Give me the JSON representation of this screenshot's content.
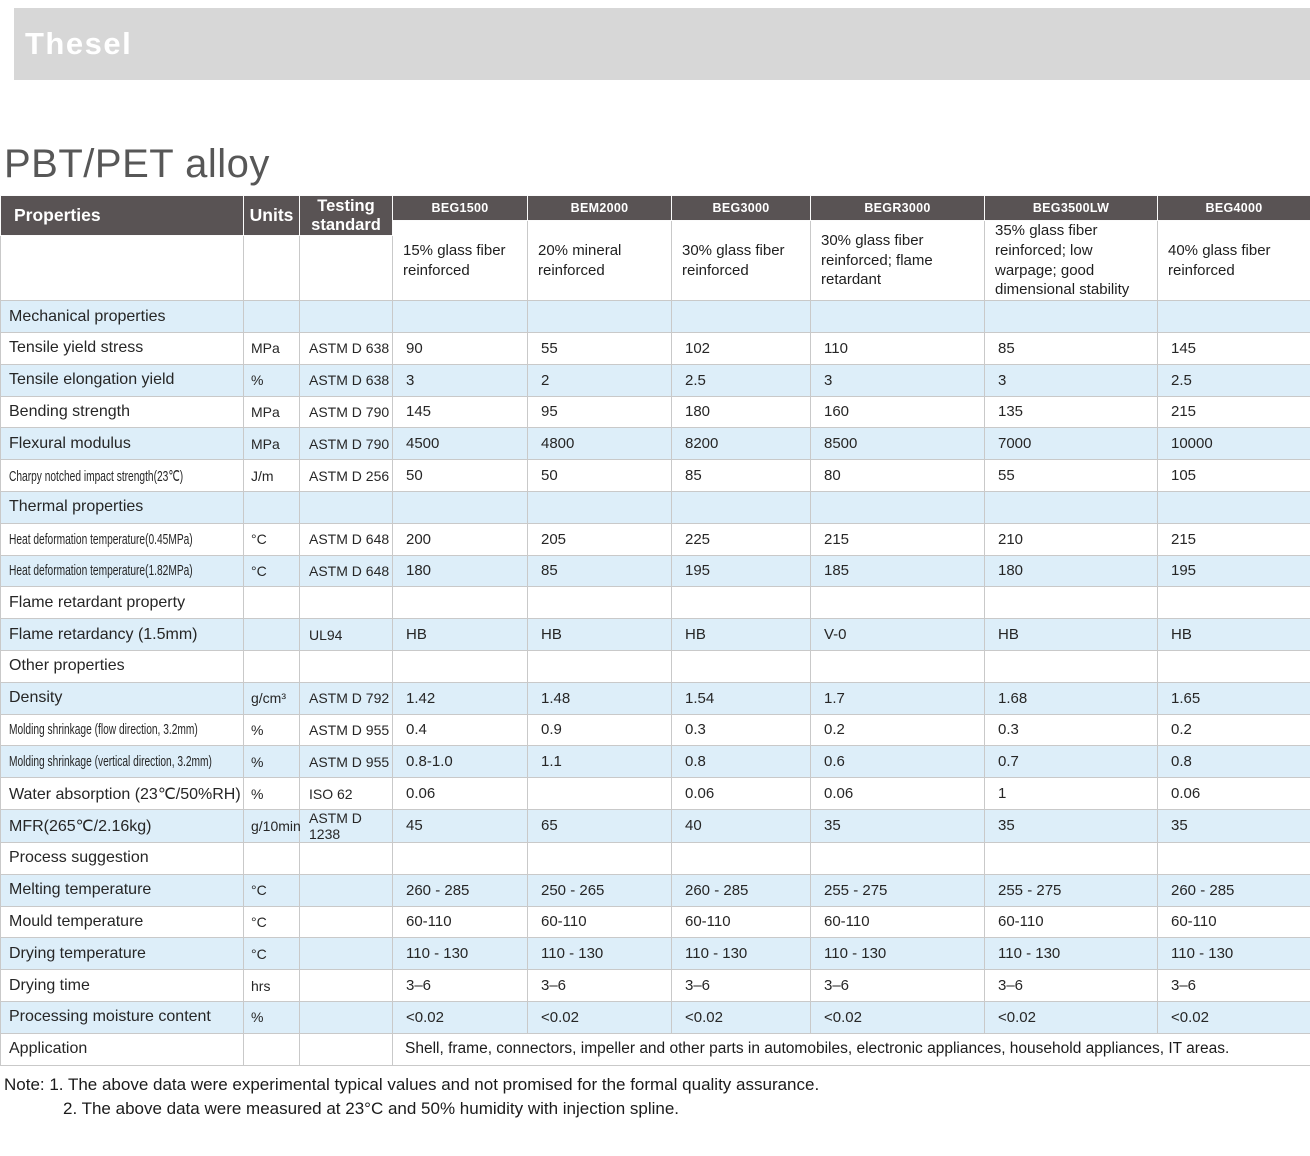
{
  "brand": {
    "logo_text": "Thesel"
  },
  "page": {
    "title": "PBT/PET alloy"
  },
  "colors": {
    "banner_bg": "#d7d7d7",
    "header_bg": "#595354",
    "alt_row_bg": "#ddeef9"
  },
  "table": {
    "header": {
      "properties": "Properties",
      "units": "Units",
      "standard": "Testing standard",
      "products": [
        {
          "code": "BEG1500",
          "desc": "15% glass fiber reinforced"
        },
        {
          "code": "BEM2000",
          "desc": "20% mineral reinforced"
        },
        {
          "code": "BEG3000",
          "desc": "30% glass fiber reinforced"
        },
        {
          "code": "BEGR3000",
          "desc": "30% glass fiber reinforced; flame retardant"
        },
        {
          "code": "BEG3500LW",
          "desc": "35% glass fiber reinforced; low warpage; good dimensional stability"
        },
        {
          "code": "BEG4000",
          "desc": "40% glass fiber reinforced"
        }
      ]
    },
    "rows": [
      {
        "type": "section",
        "label": "Mechanical properties"
      },
      {
        "type": "data",
        "property": "Tensile yield stress",
        "unit": "MPa",
        "standard": "ASTM D 638",
        "values": [
          "90",
          "55",
          "102",
          "110",
          "85",
          "145"
        ]
      },
      {
        "type": "data",
        "property": "Tensile elongation yield",
        "unit": "%",
        "standard": "ASTM D 638",
        "values": [
          "3",
          "2",
          "2.5",
          "3",
          "3",
          "2.5"
        ]
      },
      {
        "type": "data",
        "property": "Bending strength",
        "unit": "MPa",
        "standard": "ASTM D 790",
        "values": [
          "145",
          "95",
          "180",
          "160",
          "135",
          "215"
        ]
      },
      {
        "type": "data",
        "property": "Flexural modulus",
        "unit": "MPa",
        "standard": "ASTM D 790",
        "values": [
          "4500",
          "4800",
          "8200",
          "8500",
          "7000",
          "10000"
        ]
      },
      {
        "type": "data",
        "property": "Charpy notched impact strength(23℃)",
        "unit": "J/m",
        "standard": "ASTM D 256",
        "values": [
          "50",
          "50",
          "85",
          "80",
          "55",
          "105"
        ]
      },
      {
        "type": "section",
        "label": "Thermal properties"
      },
      {
        "type": "data",
        "property": "Heat deformation temperature(0.45MPa)",
        "unit": "°C",
        "standard": "ASTM D 648",
        "values": [
          "200",
          "205",
          "225",
          "215",
          "210",
          "215"
        ]
      },
      {
        "type": "data",
        "property": "Heat deformation temperature(1.82MPa)",
        "unit": "°C",
        "standard": "ASTM D 648",
        "values": [
          "180",
          "85",
          "195",
          "185",
          "180",
          "195"
        ]
      },
      {
        "type": "section",
        "label": "Flame retardant property"
      },
      {
        "type": "data",
        "property": "Flame retardancy (1.5mm)",
        "unit": "",
        "standard": "UL94",
        "values": [
          "HB",
          "HB",
          "HB",
          "V-0",
          "HB",
          "HB"
        ]
      },
      {
        "type": "section",
        "label": "Other properties"
      },
      {
        "type": "data",
        "property": "Density",
        "unit": "g/cm³",
        "standard": "ASTM D 792",
        "values": [
          "1.42",
          "1.48",
          "1.54",
          "1.7",
          "1.68",
          "1.65"
        ]
      },
      {
        "type": "data",
        "property": "Molding shrinkage (flow direction, 3.2mm)",
        "unit": "%",
        "standard": "ASTM D 955",
        "values": [
          "0.4",
          "0.9",
          "0.3",
          "0.2",
          "0.3",
          "0.2"
        ]
      },
      {
        "type": "data",
        "property": "Molding shrinkage (vertical direction, 3.2mm)",
        "unit": "%",
        "standard": "ASTM D 955",
        "values": [
          "0.8-1.0",
          "1.1",
          "0.8",
          "0.6",
          "0.7",
          "0.8"
        ]
      },
      {
        "type": "data",
        "property": "Water absorption (23℃/50%RH)",
        "unit": "%",
        "standard": "ISO 62",
        "values": [
          "0.06",
          "",
          "0.06",
          "0.06",
          "1",
          "0.06"
        ]
      },
      {
        "type": "data",
        "property": "MFR(265℃/2.16kg)",
        "unit": "g/10min",
        "standard": "ASTM D 1238",
        "values": [
          "45",
          "65",
          "40",
          "35",
          "35",
          "35"
        ]
      },
      {
        "type": "section",
        "label": "Process suggestion"
      },
      {
        "type": "data",
        "property": "Melting temperature",
        "unit": "°C",
        "standard": "",
        "values": [
          "260 - 285",
          "250 - 265",
          "260 - 285",
          "255 - 275",
          "255 - 275",
          "260 - 285"
        ]
      },
      {
        "type": "data",
        "property": "Mould temperature",
        "unit": "°C",
        "standard": "",
        "values": [
          "60-110",
          "60-110",
          "60-110",
          "60-110",
          "60-110",
          "60-110"
        ]
      },
      {
        "type": "data",
        "property": "Drying temperature",
        "unit": "°C",
        "standard": "",
        "values": [
          "110 - 130",
          "110 - 130",
          "110 - 130",
          "110 - 130",
          "110 - 130",
          "110 - 130"
        ]
      },
      {
        "type": "data",
        "property": "Drying time",
        "unit": "hrs",
        "standard": "",
        "values": [
          "3–6",
          "3–6",
          "3–6",
          "3–6",
          "3–6",
          "3–6"
        ]
      },
      {
        "type": "data",
        "property": "Processing moisture content",
        "unit": "%",
        "standard": "",
        "values": [
          "<0.02",
          "<0.02",
          "<0.02",
          "<0.02",
          "<0.02",
          "<0.02"
        ]
      },
      {
        "type": "application",
        "label": "Application",
        "text": "Shell, frame, connectors, impeller and other parts in automobiles, electronic appliances, household appliances, IT areas."
      }
    ]
  },
  "notes": {
    "line1": "Note: 1. The above data were experimental typical values and not promised for the formal quality assurance.",
    "line2": "2. The above data were measured at 23°C and 50% humidity with injection spline."
  }
}
